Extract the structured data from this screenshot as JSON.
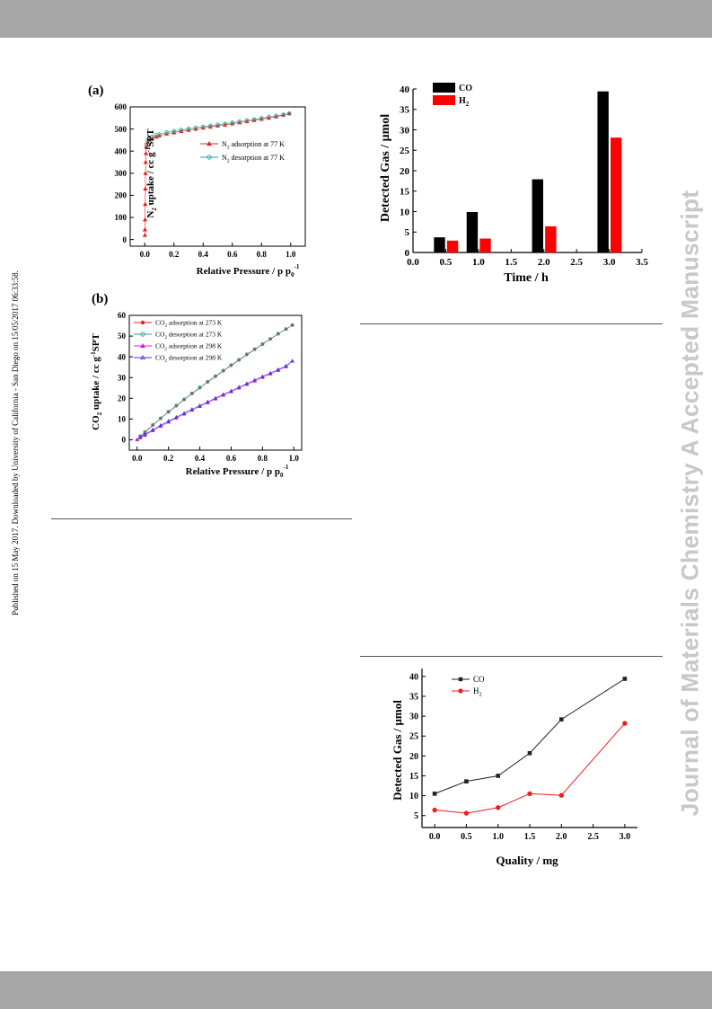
{
  "header_bar": {
    "color": "#a6a6a6"
  },
  "footer_bar": {
    "color": "#a6a6a6"
  },
  "side_note": "Published on 15 May 2017. Downloaded by University of California - San Diego on 15/05/2017 06:33:58.",
  "watermark": "Journal of Materials Chemistry A Accepted Manuscript",
  "chart_data": [
    {
      "panel_label": "(a)",
      "type": "scatter",
      "xlabel": "Relative Pressure  / p p",
      "xlabel_sub": "0",
      "xlabel_sup": "-1",
      "ylabel": "N",
      "ylabel_rest": " uptake / cc g",
      "ylabel_tail": "SPT",
      "xlim": [
        -0.1,
        1.1
      ],
      "ylim": [
        -30,
        600
      ],
      "xticks": [
        "0.0",
        "0.2",
        "0.4",
        "0.6",
        "0.8",
        "1.0"
      ],
      "yticks": [
        "0",
        "100",
        "200",
        "300",
        "400",
        "500",
        "600"
      ],
      "legend_position": "center-right",
      "series": [
        {
          "name": "N2 adsorption at 77 K",
          "color": "#e8211d",
          "marker": "triangle",
          "x": [
            0.0005,
            0.001,
            0.002,
            0.003,
            0.004,
            0.005,
            0.006,
            0.008,
            0.01,
            0.02,
            0.03,
            0.05,
            0.08,
            0.1,
            0.15,
            0.2,
            0.25,
            0.3,
            0.35,
            0.4,
            0.45,
            0.5,
            0.55,
            0.6,
            0.65,
            0.7,
            0.75,
            0.8,
            0.85,
            0.9,
            0.95,
            0.99
          ],
          "y": [
            20,
            45,
            90,
            160,
            230,
            300,
            350,
            390,
            420,
            440,
            450,
            458,
            465,
            470,
            478,
            484,
            490,
            495,
            500,
            505,
            510,
            515,
            519,
            524,
            529,
            534,
            539,
            545,
            550,
            556,
            563,
            570
          ]
        },
        {
          "name": "N2 desorption at 77 K",
          "color": "#2aa198",
          "marker": "open-circle",
          "x": [
            0.99,
            0.95,
            0.9,
            0.85,
            0.8,
            0.75,
            0.7,
            0.65,
            0.6,
            0.55,
            0.5,
            0.45,
            0.4,
            0.35,
            0.3,
            0.25,
            0.2,
            0.15,
            0.1,
            0.08,
            0.05,
            0.03,
            0.02,
            0.01
          ],
          "y": [
            570,
            565,
            559,
            554,
            549,
            544,
            539,
            534,
            529,
            524,
            520,
            515,
            510,
            506,
            501,
            496,
            491,
            485,
            476,
            472,
            465,
            456,
            448,
            430
          ]
        }
      ]
    },
    {
      "panel_label": "(b)",
      "type": "scatter",
      "xlabel": "Relative Pressure  / p p",
      "xlabel_sub": "0",
      "xlabel_sup": "-1",
      "ylabel": "CO",
      "ylabel_rest": " uptake / cc g",
      "ylabel_tail": "SPT",
      "xlim": [
        -0.05,
        1.05
      ],
      "ylim": [
        -5,
        60
      ],
      "xticks": [
        "0.0",
        "0.2",
        "0.4",
        "0.6",
        "0.8",
        "1.0"
      ],
      "yticks": [
        "0",
        "10",
        "20",
        "30",
        "40",
        "50",
        "60"
      ],
      "legend_position": "top-left",
      "series": [
        {
          "name": "CO2 adsorption at 273 K",
          "color": "#e8211d",
          "marker": "star",
          "x": [
            0.0,
            0.02,
            0.05,
            0.1,
            0.15,
            0.2,
            0.25,
            0.3,
            0.35,
            0.4,
            0.45,
            0.5,
            0.55,
            0.6,
            0.65,
            0.7,
            0.75,
            0.8,
            0.85,
            0.9,
            0.95,
            0.99
          ],
          "y": [
            0,
            1.5,
            3.5,
            7,
            10.2,
            13.3,
            16.3,
            19.3,
            22.2,
            25,
            27.8,
            30.5,
            33.2,
            35.8,
            38.4,
            41,
            43.5,
            46,
            48.5,
            51,
            53.3,
            55.3
          ]
        },
        {
          "name": "CO2 desorption at 273 K",
          "color": "#2aa198",
          "marker": "open-circle",
          "x": [
            0.99,
            0.95,
            0.9,
            0.85,
            0.8,
            0.75,
            0.7,
            0.65,
            0.6,
            0.55,
            0.5,
            0.45,
            0.4,
            0.35,
            0.3,
            0.25,
            0.2,
            0.15,
            0.1,
            0.05,
            0.02
          ],
          "y": [
            55.3,
            53.4,
            51.1,
            48.7,
            46.2,
            43.7,
            41.2,
            38.6,
            36,
            33.4,
            30.7,
            28,
            25.2,
            22.4,
            19.5,
            16.5,
            13.5,
            10.4,
            7.2,
            3.8,
            1.7
          ]
        },
        {
          "name": "CO2 adsorption at 298 K",
          "color": "#d81bd8",
          "marker": "triangle",
          "x": [
            0.0,
            0.02,
            0.05,
            0.1,
            0.15,
            0.2,
            0.25,
            0.3,
            0.35,
            0.4,
            0.45,
            0.5,
            0.55,
            0.6,
            0.65,
            0.7,
            0.75,
            0.8,
            0.85,
            0.9,
            0.95,
            0.99
          ],
          "y": [
            0,
            1,
            2.2,
            4.4,
            6.5,
            8.5,
            10.5,
            12.4,
            14.3,
            16.1,
            17.9,
            19.7,
            21.5,
            23.2,
            25,
            26.7,
            28.4,
            30.1,
            31.8,
            33.5,
            35.2,
            38
          ]
        },
        {
          "name": "CO2 desorption at 298 K",
          "color": "#3a3ae0",
          "marker": "open-triangle",
          "x": [
            0.99,
            0.95,
            0.9,
            0.85,
            0.8,
            0.75,
            0.7,
            0.65,
            0.6,
            0.55,
            0.5,
            0.45,
            0.4,
            0.35,
            0.3,
            0.25,
            0.2,
            0.15,
            0.1,
            0.05,
            0.02
          ],
          "y": [
            38,
            35.6,
            33.9,
            32.2,
            30.5,
            28.8,
            27.1,
            25.4,
            23.6,
            21.9,
            20.1,
            18.3,
            16.5,
            14.7,
            12.8,
            10.9,
            9,
            7,
            4.9,
            2.6,
            1.2
          ]
        }
      ]
    },
    {
      "type": "bar",
      "xlabel": "Time / h",
      "ylabel": "Detected Gas / μmol",
      "xlim": [
        0.0,
        3.5
      ],
      "ylim": [
        0,
        40
      ],
      "xticks": [
        "0.0",
        "0.5",
        "1.0",
        "1.5",
        "2.0",
        "2.5",
        "3.0",
        "3.5"
      ],
      "yticks": [
        "0",
        "5",
        "10",
        "15",
        "20",
        "25",
        "30",
        "35",
        "40"
      ],
      "legend_position": "top-left",
      "x": [
        0.5,
        1.0,
        2.0,
        3.0
      ],
      "series": [
        {
          "name": "CO",
          "color": "#000000",
          "values": [
            3.7,
            9.9,
            17.9,
            39.4
          ]
        },
        {
          "name": "H2",
          "color": "#ff0000",
          "values": [
            2.9,
            3.4,
            6.4,
            28.1
          ]
        }
      ]
    },
    {
      "type": "line",
      "xlabel": "Quality / mg",
      "ylabel": "Detected Gas / μmol",
      "xlim": [
        -0.2,
        3.2
      ],
      "ylim": [
        2,
        42
      ],
      "xticks": [
        "0.0",
        "0.5",
        "1.0",
        "1.5",
        "2.0",
        "2.5",
        "3.0"
      ],
      "yticks": [
        "5",
        "10",
        "15",
        "20",
        "25",
        "30",
        "35",
        "40"
      ],
      "legend_position": "top-left",
      "x": [
        0.0,
        0.5,
        1.0,
        1.5,
        2.0,
        3.0
      ],
      "series": [
        {
          "name": "CO",
          "color": "#222222",
          "marker": "square",
          "values": [
            10.5,
            13.6,
            15.0,
            20.7,
            29.2,
            39.4
          ]
        },
        {
          "name": "H2",
          "color": "#e8211d",
          "marker": "circle",
          "values": [
            6.4,
            5.6,
            7.0,
            10.5,
            10.1,
            28.2
          ]
        }
      ]
    }
  ]
}
